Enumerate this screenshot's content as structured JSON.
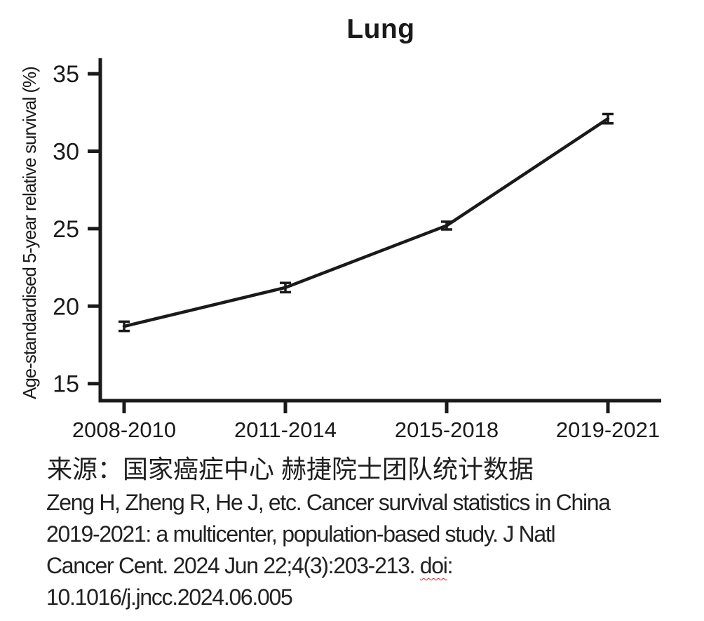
{
  "chart_data": {
    "type": "line",
    "title": "Lung",
    "xlabel": "",
    "ylabel": "Age-standardised 5-year relative survival (%)",
    "categories": [
      "2008-2010",
      "2011-2014",
      "2015-2018",
      "2019-2021"
    ],
    "series": [
      {
        "name": "Lung age-standardised 5-year relative survival (%)",
        "values": [
          18.7,
          21.2,
          25.2,
          32.1
        ],
        "errors": [
          0.3,
          0.3,
          0.25,
          0.3
        ]
      }
    ],
    "yticks": [
      15,
      20,
      25,
      30,
      35
    ],
    "ylim": [
      13.9,
      36.0
    ],
    "grid": false,
    "legend": "none",
    "line_color": "#1a1a1a",
    "axis_color": "#1a1a1a",
    "error_bars": true
  },
  "source_line": "来源：国家癌症中心 赫捷院士团队统计数据",
  "citation": {
    "line1": "Zeng H, Zheng R, He J, etc. Cancer survival statistics in China",
    "line2": "2019-2021: a multicenter, population-based study. J Natl",
    "line3_prefix": "Cancer Cent. 2024 Jun 22;4(3):203-213. ",
    "line3_doi_word": "doi",
    "line3_suffix": ":",
    "line4": "10.1016/j.jncc.2024.06.005",
    "doi_underline_color": "#cc2b2b"
  }
}
